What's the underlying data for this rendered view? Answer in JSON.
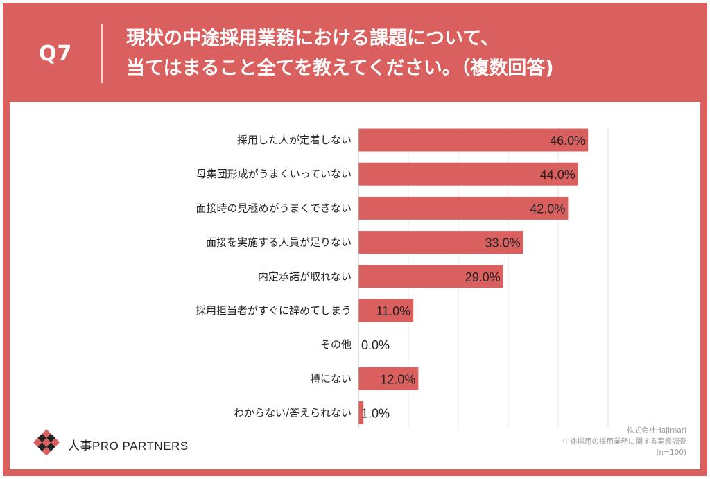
{
  "header": {
    "question_label": "Q7",
    "title_line1": "現状の中途採用業務における課題について、",
    "title_line2": "当てはまること全てを教えてください。（複数回答)"
  },
  "colors": {
    "frame": "#d9605f",
    "bar": "#d9605f",
    "panel": "#ffffff",
    "gridline": "#e6e6e6"
  },
  "chart_data": {
    "type": "bar",
    "orientation": "horizontal",
    "categories": [
      "採用した人が定着しない",
      "母集団形成がうまくいっていない",
      "面接時の見極めがうまくできない",
      "面接を実施する人員が足りない",
      "内定承諾が取れない",
      "採用担当者がすぐに辞めてしまう",
      "その他",
      "特にない",
      "わからない/答えられない"
    ],
    "values": [
      46.0,
      44.0,
      42.0,
      33.0,
      29.0,
      11.0,
      0.0,
      12.0,
      1.0
    ],
    "value_labels": [
      "46.0%",
      "44.0%",
      "42.0%",
      "33.0%",
      "29.0%",
      "11.0%",
      "0.0%",
      "12.0%",
      "1.0%"
    ],
    "xlim": [
      0,
      50
    ],
    "grid": true
  },
  "logo": {
    "text": "人事PRO PARTNERS",
    "icon": "checkered-logo-icon"
  },
  "source": {
    "company": "株式会社Hajimari",
    "survey": "中途採用の採用業務に関する実態調査",
    "sample": "(n=100)"
  }
}
